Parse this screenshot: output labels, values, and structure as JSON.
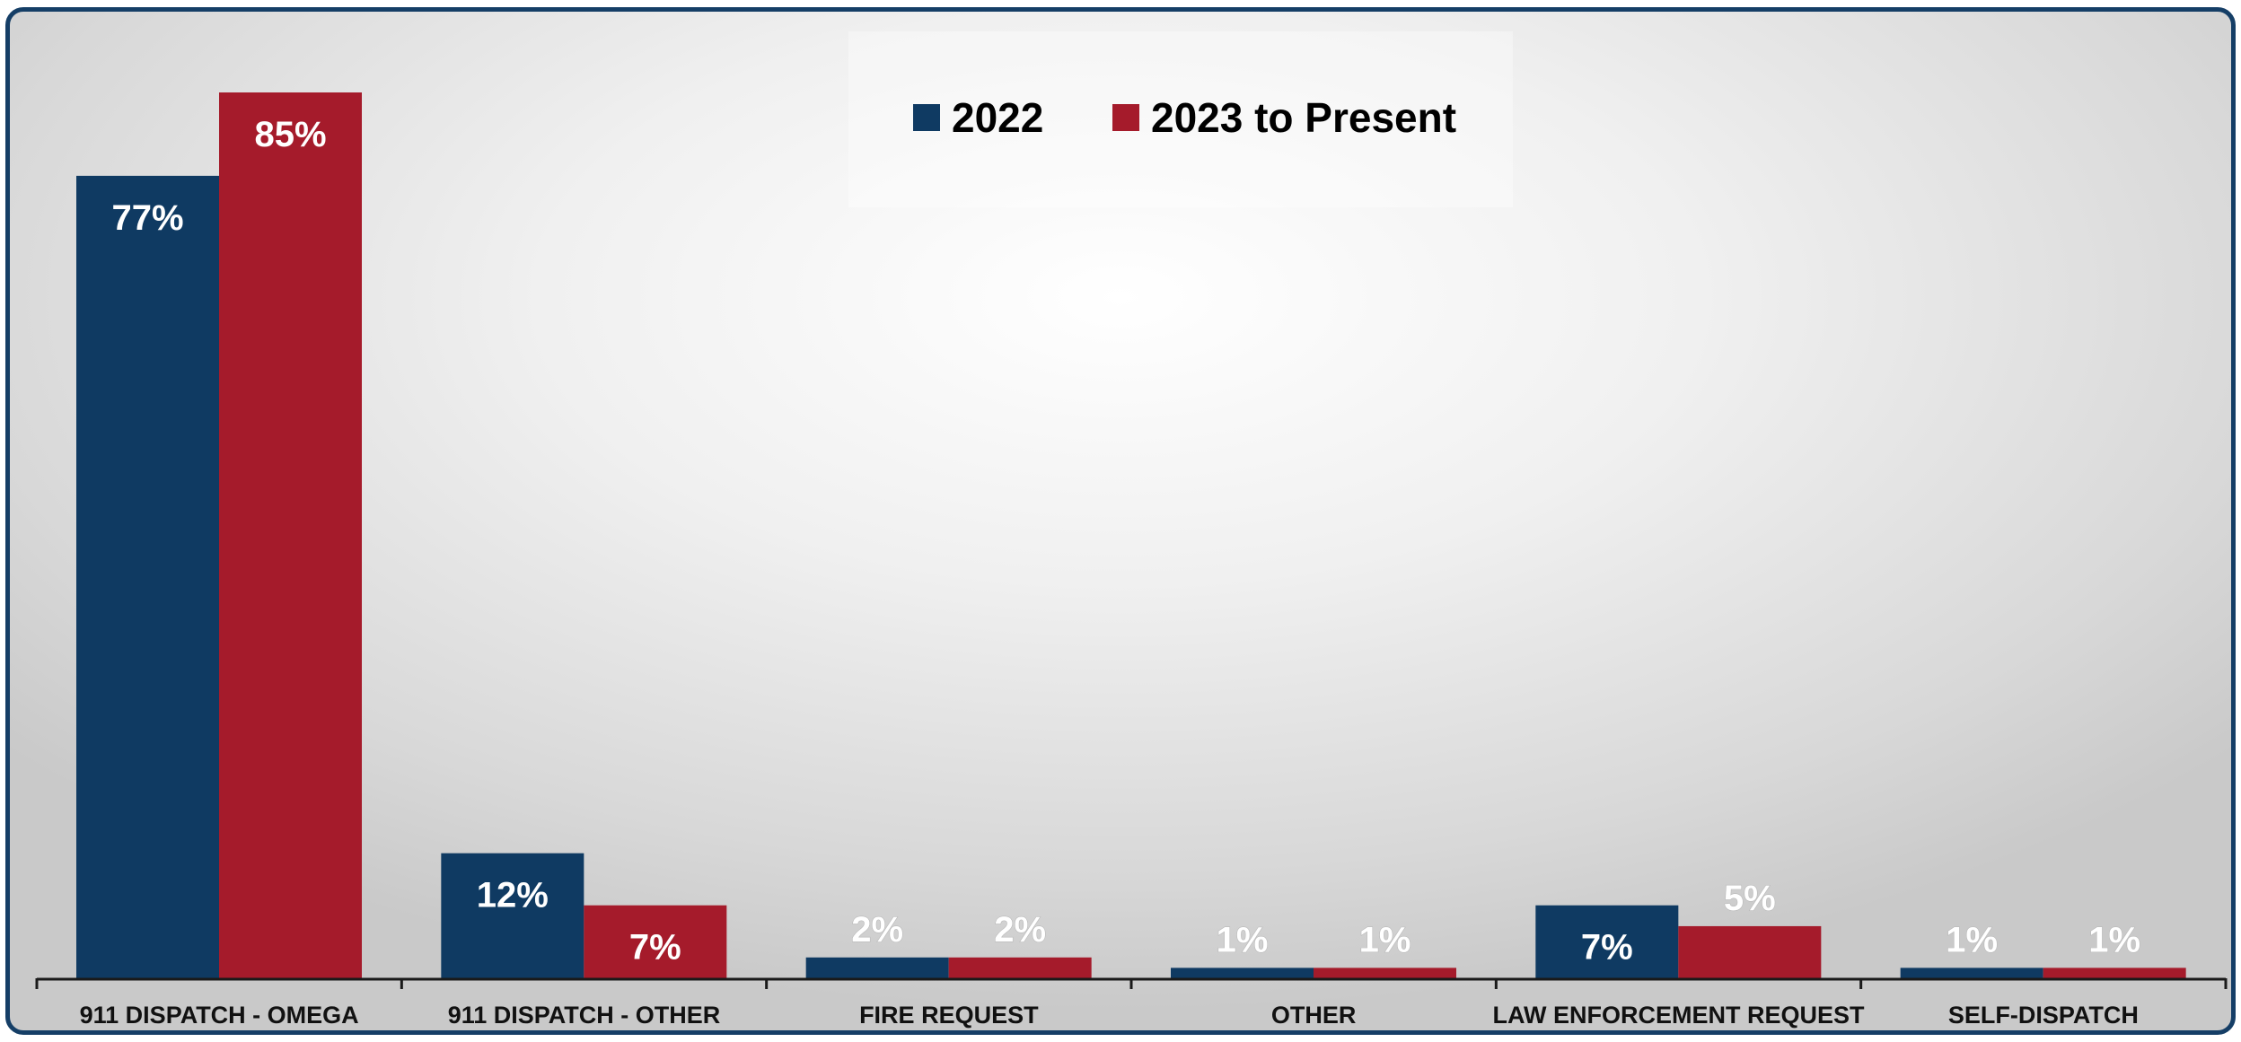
{
  "chart_data": {
    "type": "bar",
    "categories": [
      "911 DISPATCH - OMEGA",
      "911 DISPATCH - OTHER",
      "FIRE REQUEST",
      "OTHER",
      "LAW ENFORCEMENT REQUEST",
      "SELF-DISPATCH"
    ],
    "series": [
      {
        "name": "2022",
        "values": [
          77,
          12,
          2,
          1,
          7,
          1
        ],
        "labels": [
          "77%",
          "12%",
          "2%",
          "1%",
          "7%",
          "1%"
        ],
        "color": "#0f3a62"
      },
      {
        "name": "2023 to Present",
        "values": [
          85,
          7,
          2,
          1,
          5,
          1
        ],
        "labels": [
          "85%",
          "7%",
          "2%",
          "1%",
          "5%",
          "1%"
        ],
        "color": "#a51b2b"
      }
    ],
    "value_format": "percent",
    "ylim": [
      0,
      85
    ],
    "legend_position": "top-center",
    "grid": false,
    "title": "",
    "xlabel": "",
    "ylabel": ""
  },
  "colors": {
    "frame_border": "#153e66",
    "axis": "#1a1a1a"
  }
}
